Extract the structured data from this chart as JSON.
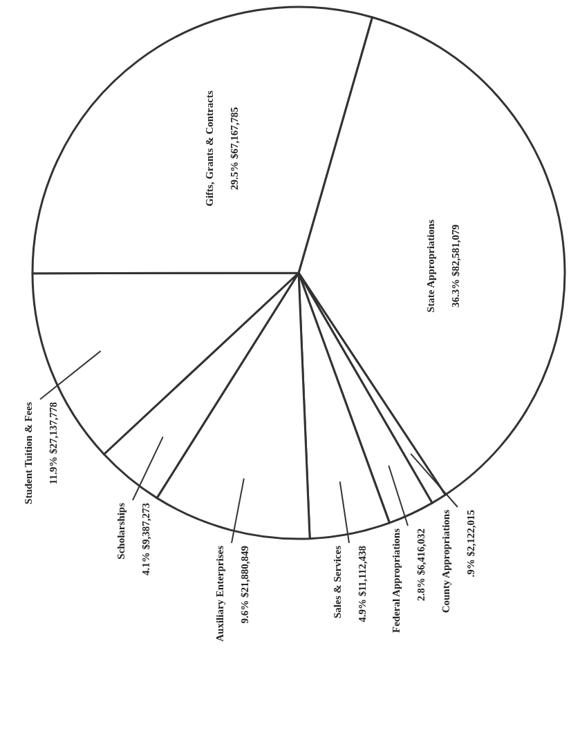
{
  "chart_data": {
    "type": "pie",
    "categories": [
      "State Appropriations",
      "County Appropriations",
      "Federal Appropriations",
      "Sales & Services",
      "Auxiliary Enterprises",
      "Scholarships",
      "Student Tuition & Fees",
      "Gifts, Grants & Contracts"
    ],
    "values": [
      82581079,
      2122015,
      6416032,
      11112438,
      21880849,
      9387273,
      27137778,
      67167785
    ],
    "value_labels": [
      "36.3%  $82,581,079",
      ".9%  $2,122,015",
      "2.8%  $6,416,032",
      "4.9%  $11,112,438",
      "9.6%  $21,880,849",
      "4.1%  $9,387,273",
      "11.9%  $27,137,778",
      "29.5%  $67,167,785"
    ],
    "colors": [
      "#ffffff",
      "#ffffff",
      "#ffffff",
      "#ffffff",
      "#ffffff",
      "#ffffff",
      "#ffffff",
      "#ffffff"
    ]
  }
}
